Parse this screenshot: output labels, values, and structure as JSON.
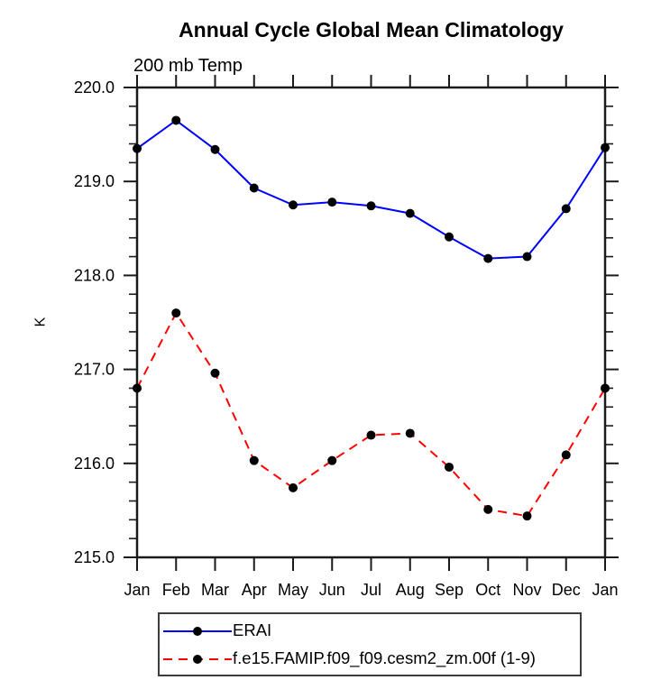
{
  "chart_data": {
    "type": "line",
    "title": "Annual Cycle Global Mean Climatology",
    "subtitle": "200 mb Temp",
    "ylabel": "K",
    "categories": [
      "Jan",
      "Feb",
      "Mar",
      "Apr",
      "May",
      "Jun",
      "Jul",
      "Aug",
      "Sep",
      "Oct",
      "Nov",
      "Dec",
      "Jan"
    ],
    "ylim": [
      215.0,
      220.0
    ],
    "ytick_step": 1.0,
    "yminor_step": 0.2,
    "ytick_labels": [
      "215.0",
      "216.0",
      "217.0",
      "218.0",
      "219.0",
      "220.0"
    ],
    "grid": false,
    "legend_position": "bottom",
    "axis_color": "#1a1a1a",
    "marker_radius": 5,
    "series": [
      {
        "name": "ERAI",
        "color": "#0000ff",
        "style": "solid",
        "marker": "circle",
        "marker_color": "#000000",
        "values": [
          219.35,
          219.65,
          219.34,
          218.93,
          218.75,
          218.78,
          218.74,
          218.66,
          218.41,
          218.18,
          218.2,
          218.71,
          219.36
        ]
      },
      {
        "name": "f.e15.FAMIP.f09_f09.cesm2_zm.00f (1-9)",
        "color": "#ff0000",
        "style": "dashed",
        "marker": "circle",
        "marker_color": "#000000",
        "values": [
          216.8,
          217.6,
          216.96,
          216.03,
          215.74,
          216.03,
          216.3,
          216.32,
          215.96,
          215.51,
          215.44,
          216.09,
          216.8
        ]
      }
    ]
  }
}
